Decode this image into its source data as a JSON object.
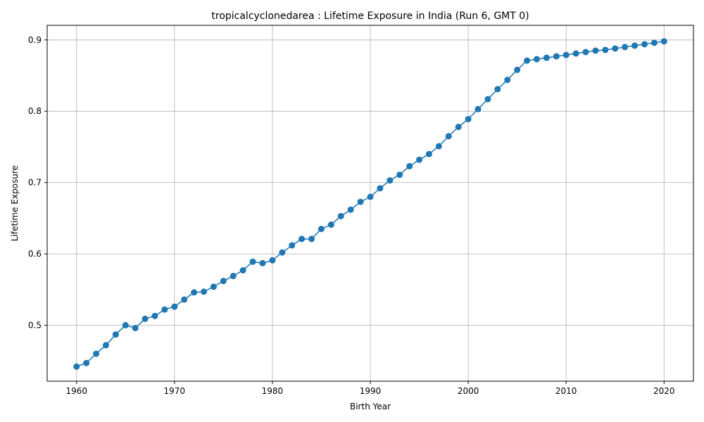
{
  "chart_data": {
    "type": "line",
    "title": "tropicalcyclonedarea : Lifetime Exposure in India (Run 6, GMT 0)",
    "xlabel": "Birth Year",
    "ylabel": "Lifetime Exposure",
    "xlim": [
      1957,
      2023
    ],
    "ylim": [
      0.4215,
      0.9205
    ],
    "xticks": [
      1960,
      1970,
      1980,
      1990,
      2000,
      2010,
      2020
    ],
    "yticks": [
      0.5,
      0.6,
      0.7,
      0.8,
      0.9
    ],
    "grid": true,
    "color": "#1f77b4",
    "series": [
      {
        "x": [
          1960,
          1961,
          1962,
          1963,
          1964,
          1965,
          1966,
          1967,
          1968,
          1969,
          1970,
          1971,
          1972,
          1973,
          1974,
          1975,
          1976,
          1977,
          1978,
          1979,
          1980,
          1981,
          1982,
          1983,
          1984,
          1985,
          1986,
          1987,
          1988,
          1989,
          1990,
          1991,
          1992,
          1993,
          1994,
          1995,
          1996,
          1997,
          1998,
          1999,
          2000,
          2001,
          2002,
          2003,
          2004,
          2005,
          2006,
          2007,
          2008,
          2009,
          2010,
          2011,
          2012,
          2013,
          2014,
          2015,
          2016,
          2017,
          2018,
          2019,
          2020
        ],
        "y": [
          0.442,
          0.447,
          0.46,
          0.472,
          0.487,
          0.5,
          0.496,
          0.509,
          0.513,
          0.522,
          0.526,
          0.536,
          0.546,
          0.547,
          0.554,
          0.562,
          0.569,
          0.577,
          0.589,
          0.587,
          0.591,
          0.602,
          0.612,
          0.621,
          0.621,
          0.635,
          0.641,
          0.653,
          0.662,
          0.673,
          0.68,
          0.692,
          0.703,
          0.711,
          0.723,
          0.732,
          0.74,
          0.751,
          0.765,
          0.778,
          0.789,
          0.803,
          0.817,
          0.831,
          0.844,
          0.858,
          0.871,
          0.873,
          0.875,
          0.877,
          0.879,
          0.881,
          0.883,
          0.885,
          0.886,
          0.888,
          0.89,
          0.892,
          0.894,
          0.896,
          0.898
        ]
      }
    ]
  }
}
